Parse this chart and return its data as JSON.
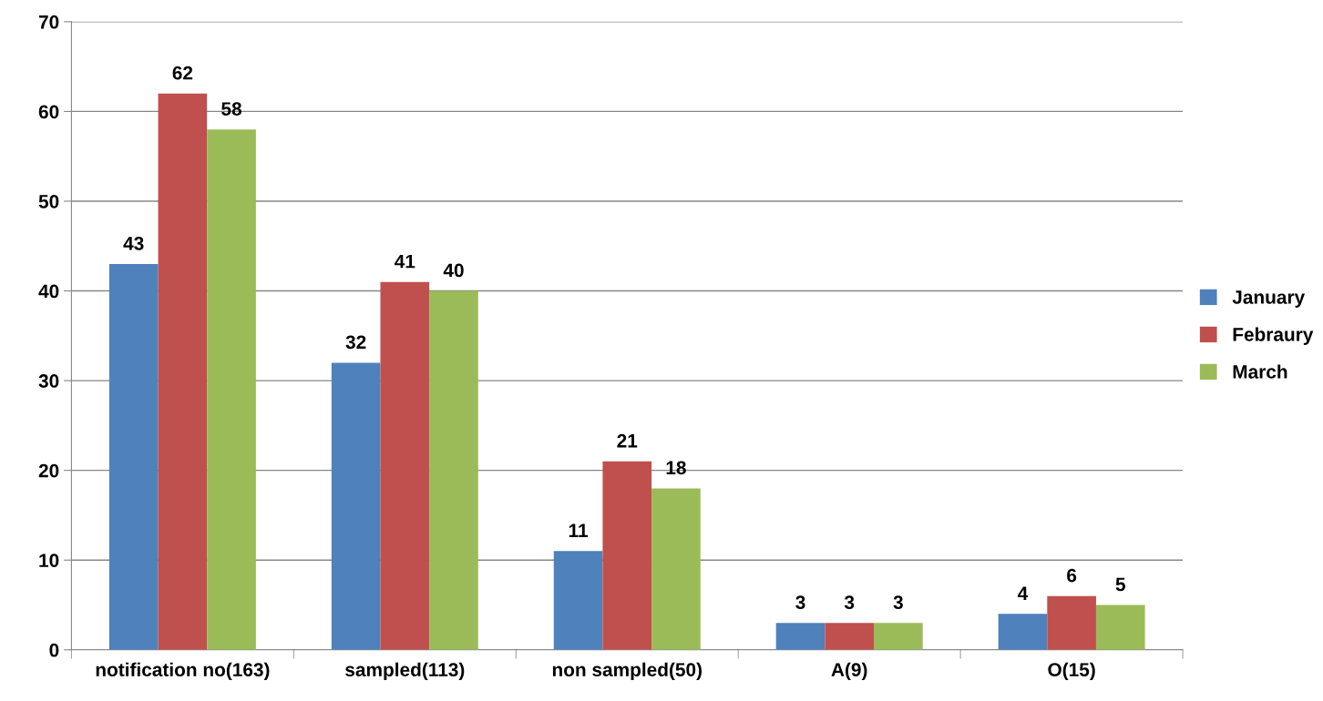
{
  "chart_data": {
    "type": "bar",
    "categories": [
      "notification no(163)",
      "sampled(113)",
      "non sampled(50)",
      "A(9)",
      "O(15)"
    ],
    "series": [
      {
        "name": "January",
        "color": "#4f81bd",
        "values": [
          43,
          32,
          11,
          3,
          4
        ]
      },
      {
        "name": "Febraury",
        "color": "#c0504d",
        "values": [
          62,
          41,
          21,
          3,
          6
        ]
      },
      {
        "name": "March",
        "color": "#9bbb59",
        "values": [
          58,
          40,
          18,
          3,
          5
        ]
      }
    ],
    "ylim": [
      0,
      70
    ],
    "yticks": [
      0,
      10,
      20,
      30,
      40,
      50,
      60,
      70
    ],
    "grid": "y",
    "legend": "right",
    "data_labels": true
  }
}
